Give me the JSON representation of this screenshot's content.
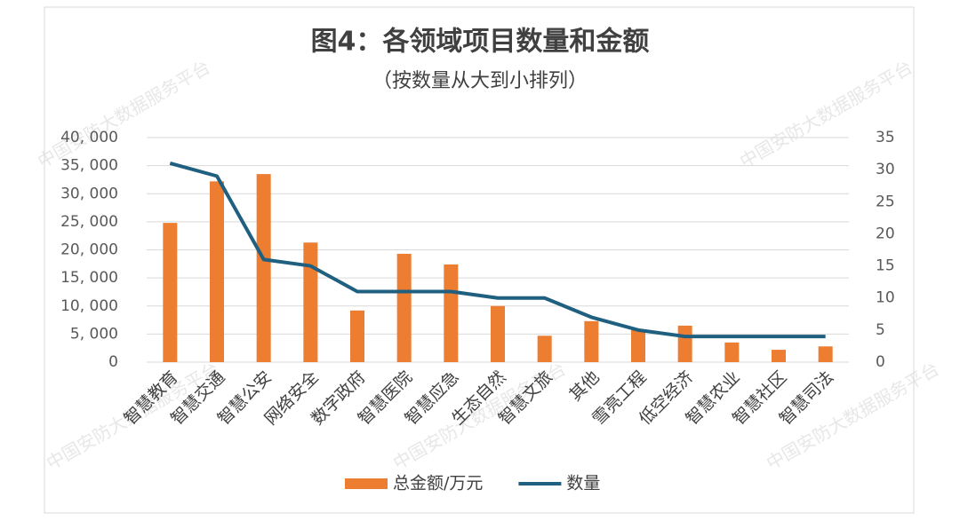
{
  "chart_data": {
    "type": "bar-line",
    "title": "图4：各领域项目数量和金额",
    "subtitle": "（按数量从大到小排列）",
    "watermark": "中国安防大数据服务平台",
    "categories": [
      "智慧教育",
      "智慧交通",
      "智慧公安",
      "网络安全",
      "数字政府",
      "智慧医院",
      "智慧应急",
      "生态自然",
      "智慧文旅",
      "其他",
      "雪亮工程",
      "低空经济",
      "智慧农业",
      "智慧社区",
      "智慧司法"
    ],
    "series": [
      {
        "name": "总金额/万元",
        "type": "bar",
        "axis": "y",
        "color": "#ed7d31",
        "values": [
          24800,
          32200,
          33500,
          21300,
          9200,
          19300,
          17400,
          10000,
          4700,
          7300,
          5700,
          6500,
          3500,
          2200,
          2800
        ]
      },
      {
        "name": "数量",
        "type": "line",
        "axis": "y2",
        "color": "#1f5f7f",
        "values": [
          31,
          29,
          16,
          15,
          11,
          11,
          11,
          10,
          10,
          7,
          5,
          4,
          4,
          4,
          4
        ]
      }
    ],
    "ylim": [
      0,
      40000
    ],
    "yticks": [
      0,
      {
        "value": 5000,
        "label": "5, 000"
      },
      {
        "value": 10000,
        "label": "10, 000"
      },
      {
        "value": 15000,
        "label": "15, 000"
      },
      {
        "value": 20000,
        "label": "20, 000"
      },
      {
        "value": 25000,
        "label": "25, 000"
      },
      {
        "value": 30000,
        "label": "30, 000"
      },
      {
        "value": 35000,
        "label": "35, 000"
      },
      {
        "value": 40000,
        "label": "40, 000"
      }
    ],
    "y2lim": [
      0,
      35
    ],
    "y2ticks": [
      0,
      5,
      10,
      15,
      20,
      25,
      30,
      35
    ],
    "grid": true,
    "legend": "bottom"
  }
}
